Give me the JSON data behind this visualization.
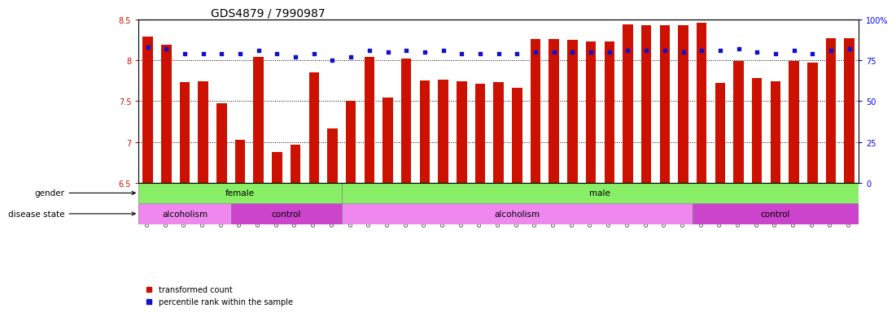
{
  "title": "GDS4879 / 7990987",
  "samples": [
    "GSM1085677",
    "GSM1085681",
    "GSM1085685",
    "GSM1085689",
    "GSM1085695",
    "GSM1085698",
    "GSM1085673",
    "GSM1085679",
    "GSM1085694",
    "GSM1085696",
    "GSM1085699",
    "GSM1085701",
    "GSM1085666",
    "GSM1085668",
    "GSM1085670",
    "GSM1085671",
    "GSM1085674",
    "GSM1085678",
    "GSM1085680",
    "GSM1085682",
    "GSM1085683",
    "GSM1085684",
    "GSM1085687",
    "GSM1085691",
    "GSM1085697",
    "GSM1085700",
    "GSM1085665",
    "GSM1085667",
    "GSM1085669",
    "GSM1085672",
    "GSM1085675",
    "GSM1085676",
    "GSM1085686",
    "GSM1085688",
    "GSM1085690",
    "GSM1085692",
    "GSM1085693",
    "GSM1085702",
    "GSM1085703"
  ],
  "bar_values": [
    8.29,
    8.19,
    7.73,
    7.74,
    7.47,
    7.03,
    8.04,
    6.88,
    6.97,
    7.85,
    7.16,
    7.5,
    8.04,
    7.54,
    8.02,
    7.75,
    7.76,
    7.74,
    7.71,
    7.73,
    7.66,
    8.26,
    8.26,
    8.25,
    8.23,
    8.23,
    8.44,
    8.43,
    8.43,
    8.43,
    8.46,
    7.72,
    7.99,
    7.78,
    7.74,
    7.99,
    7.97,
    8.27,
    8.27
  ],
  "percentile_values": [
    83,
    82,
    79,
    79,
    79,
    79,
    81,
    79,
    77,
    79,
    75,
    77,
    81,
    80,
    81,
    80,
    81,
    79,
    79,
    79,
    79,
    80,
    80,
    80,
    80,
    80,
    81,
    81,
    81,
    80,
    81,
    81,
    82,
    80,
    79,
    81,
    79,
    81,
    82
  ],
  "ylim_left": [
    6.5,
    8.5
  ],
  "ylim_right": [
    0,
    100
  ],
  "bar_color": "#cc1100",
  "dot_color": "#1111cc",
  "baseline": 6.5,
  "yticks_left": [
    6.5,
    7.0,
    7.5,
    8.0,
    8.5
  ],
  "yticks_right": [
    0,
    25,
    50,
    75,
    100
  ],
  "title_fontsize": 10,
  "tick_fontsize": 7,
  "label_fontsize": 7.5,
  "gender_female_color": "#88ee66",
  "gender_male_color": "#88ee66",
  "disease_alc_color": "#ee88ee",
  "disease_ctrl_color": "#cc44cc",
  "n_female": 11,
  "n_alc_female": 5,
  "n_ctrl_female": 6,
  "n_alc_male": 19,
  "n_ctrl_male": 9
}
